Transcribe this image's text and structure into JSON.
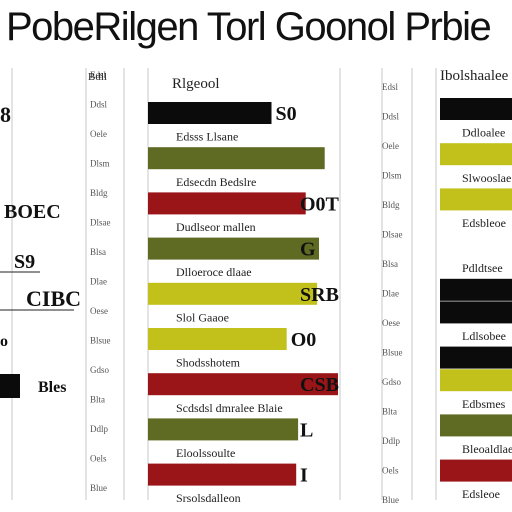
{
  "colors": {
    "black": "#0b0b0b",
    "olive": "#5f6a23",
    "lime": "#c2c11c",
    "red": "#9a1518",
    "grid": "#c9c9c9"
  },
  "chart_data": {
    "type": "bar",
    "orientation": "horizontal",
    "title": "PobeRilgen Torl Goonol Prbie",
    "panels": [
      {
        "name": "center",
        "header": "Rlgeool",
        "xlim": [
          0,
          100
        ],
        "bars": [
          {
            "label": "",
            "value": 65,
            "color": "black",
            "value_label": "S0"
          },
          {
            "label": "Edsss Llsane",
            "value": 0,
            "color": "none",
            "value_label": ""
          },
          {
            "label": "",
            "value": 93,
            "color": "olive",
            "value_label": ""
          },
          {
            "label": "Edsecdn Bedslre",
            "value": 0,
            "color": "none",
            "value_label": ""
          },
          {
            "label": "",
            "value": 83,
            "color": "red",
            "value_label": "O0T"
          },
          {
            "label": "Dudlseor mallen",
            "value": 0,
            "color": "none",
            "value_label": ""
          },
          {
            "label": "",
            "value": 90,
            "color": "olive",
            "value_label": "G"
          },
          {
            "label": "Dlloeroce dlaae",
            "value": 0,
            "color": "none",
            "value_label": ""
          },
          {
            "label": "",
            "value": 89,
            "color": "lime",
            "value_label": "SRB"
          },
          {
            "label": "Slol Gaaoe",
            "value": 0,
            "color": "none",
            "value_label": ""
          },
          {
            "label": "",
            "value": 73,
            "color": "lime",
            "value_label": "O0"
          },
          {
            "label": "Shodsshotem",
            "value": 0,
            "color": "none",
            "value_label": ""
          },
          {
            "label": "",
            "value": 100,
            "color": "red",
            "value_label": "CSB"
          },
          {
            "label": "Scdsdsl dmralee Blaie",
            "value": 0,
            "color": "none",
            "value_label": ""
          },
          {
            "label": "",
            "value": 79,
            "color": "olive",
            "value_label": "L"
          },
          {
            "label": "Eloolssoulte",
            "value": 0,
            "color": "none",
            "value_label": ""
          },
          {
            "label": "",
            "value": 78,
            "color": "red",
            "value_label": "I"
          },
          {
            "label": "Srsolsdalleon",
            "value": 0,
            "color": "none",
            "value_label": ""
          }
        ]
      },
      {
        "name": "right",
        "header": "Ibolshaalee",
        "xlim": [
          0,
          100
        ],
        "bars": [
          {
            "label": "",
            "value": 100,
            "color": "black"
          },
          {
            "label": "Ddloalee",
            "value": 0,
            "color": "none"
          },
          {
            "label": "",
            "value": 100,
            "color": "lime"
          },
          {
            "label": "Slwooslae",
            "value": 0,
            "color": "none"
          },
          {
            "label": "",
            "value": 100,
            "color": "lime"
          },
          {
            "label": "Edsbleoe",
            "value": 0,
            "color": "none"
          },
          {
            "label": "",
            "value": 100,
            "color": "none"
          },
          {
            "label": "Pdldtsee",
            "value": 0,
            "color": "none"
          },
          {
            "label": "",
            "value": 100,
            "color": "black"
          },
          {
            "label": "",
            "value": 100,
            "color": "black"
          },
          {
            "label": "Ldlsobee",
            "value": 0,
            "color": "none"
          },
          {
            "label": "",
            "value": 100,
            "color": "black"
          },
          {
            "label": "",
            "value": 100,
            "color": "lime"
          },
          {
            "label": "Edbsmes",
            "value": 0,
            "color": "none"
          },
          {
            "label": "",
            "value": 100,
            "color": "olive"
          },
          {
            "label": "Bleoaldlae",
            "value": 0,
            "color": "none"
          },
          {
            "label": "",
            "value": 100,
            "color": "red"
          },
          {
            "label": "Edsleoe",
            "value": 0,
            "color": "none"
          }
        ]
      },
      {
        "name": "left",
        "header": "Bdll",
        "bars": [
          {
            "label": "8",
            "value": 0,
            "color": "none"
          },
          {
            "label": "BOEC",
            "value": 0,
            "color": "none"
          },
          {
            "label": "S9",
            "value": 0,
            "color": "none"
          },
          {
            "label": "CIBC",
            "value": 0,
            "color": "none"
          },
          {
            "label": "o",
            "value": 0,
            "color": "none"
          },
          {
            "label": "Bles",
            "value": 20,
            "color": "black"
          }
        ]
      }
    ],
    "ticks": [
      "Edsl",
      "Ddsl",
      "Oele",
      "Dlsm",
      "Bldg",
      "Dlsae",
      "Blsa",
      "Dlae",
      "Oese",
      "Blsue",
      "Gdso",
      "Blta",
      "Ddlp",
      "Oels",
      "Blue"
    ],
    "grid": true,
    "legend": "none"
  }
}
